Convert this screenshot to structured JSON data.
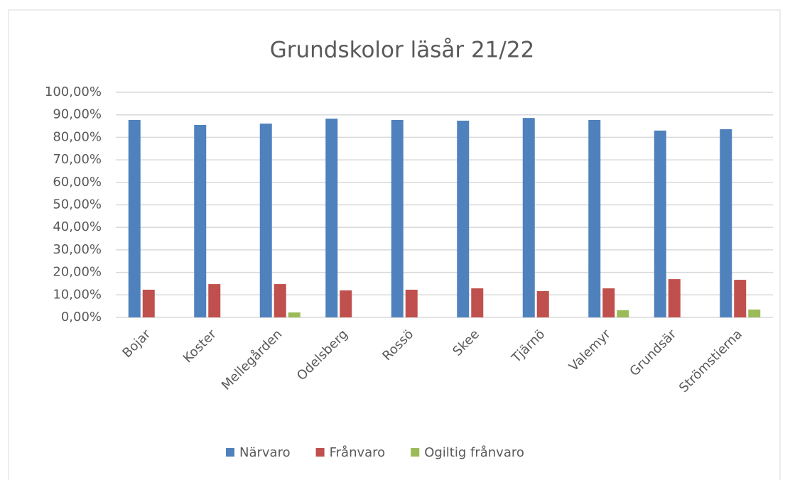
{
  "chart_data": {
    "type": "bar",
    "title": "Grundskolor läsår 21/22",
    "categories": [
      "Bojar",
      "Koster",
      "Mellegården",
      "Odelsberg",
      "Rossö",
      "Skee",
      "Tjärnö",
      "Valemyr",
      "Grundsär",
      "Strömstierna"
    ],
    "series": [
      {
        "name": "Närvaro",
        "color": "#4f81bd",
        "values": [
          87.7,
          85.5,
          86.1,
          88.3,
          87.7,
          87.4,
          88.6,
          87.7,
          83.0,
          83.6
        ]
      },
      {
        "name": "Frånvaro",
        "color": "#c0504d",
        "values": [
          12.3,
          14.8,
          14.8,
          12.0,
          12.3,
          12.9,
          11.7,
          12.9,
          17.0,
          16.7
        ]
      },
      {
        "name": "Ogiltig frånvaro",
        "color": "#9bbb59",
        "values": [
          0,
          0,
          2.2,
          0,
          0,
          0,
          0,
          3.2,
          0,
          3.5
        ]
      }
    ],
    "ylim": [
      0,
      100
    ],
    "yticks": [
      {
        "value": 0,
        "label": "0,00%"
      },
      {
        "value": 10,
        "label": "10,00%"
      },
      {
        "value": 20,
        "label": "20,00%"
      },
      {
        "value": 30,
        "label": "30,00%"
      },
      {
        "value": 40,
        "label": "40,00%"
      },
      {
        "value": 50,
        "label": "50,00%"
      },
      {
        "value": 60,
        "label": "60,00%"
      },
      {
        "value": 70,
        "label": "70,00%"
      },
      {
        "value": 80,
        "label": "80,00%"
      },
      {
        "value": 90,
        "label": "90,00%"
      },
      {
        "value": 100,
        "label": "100,00%"
      }
    ],
    "grid": true,
    "legend": "bottom"
  }
}
